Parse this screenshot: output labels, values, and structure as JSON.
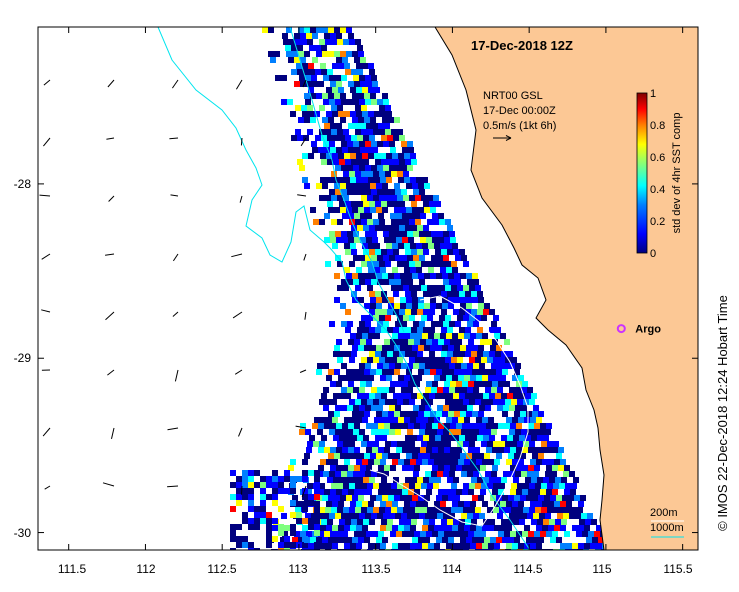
{
  "title": "17-Dec-2018 12Z",
  "current_note": {
    "line1": "NRT00 GSL",
    "line2": "17-Dec 00:00Z",
    "line3": "0.5m/s (1kt 6h)"
  },
  "colorbar": {
    "label": "std dev of 4hr SST comp",
    "ticks": [
      "0",
      "0.2",
      "0.4",
      "0.6",
      "0.8",
      "1"
    ],
    "colors": [
      "#00007f",
      "#0000ff",
      "#007fff",
      "#00ffff",
      "#7fff7f",
      "#ffff00",
      "#ff7f00",
      "#ff0000",
      "#7f0000"
    ]
  },
  "marker": {
    "label": "Argo",
    "color": "#cc33ff"
  },
  "isobaths": [
    "200m",
    "1000m"
  ],
  "isobath_colors": {
    "200m": "#ffffff",
    "1000m": "#00e5ee"
  },
  "land_color": "#fcc895",
  "credit": "© IMOS 22-Dec-2018 12:24 Hobart Time",
  "chart_data": {
    "type": "heatmap",
    "x_ticks": [
      "111.5",
      "112",
      "112.5",
      "113",
      "113.5",
      "114",
      "114.5",
      "115",
      "115.5"
    ],
    "y_ticks": [
      "-28",
      "-29",
      "-30"
    ],
    "xlim": [
      111.3,
      115.6
    ],
    "ylim": [
      -30.1,
      -27.1
    ],
    "argo_position": [
      115.1,
      -28.83
    ]
  }
}
